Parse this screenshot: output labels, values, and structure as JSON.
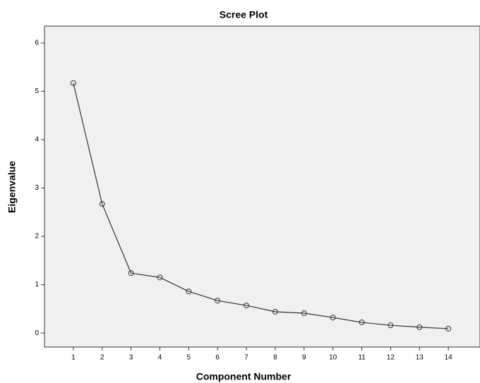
{
  "chart_data": {
    "type": "line",
    "title": "Scree Plot",
    "x_label": "Component Number",
    "y_label": "Eigenvalue",
    "x": [
      1,
      2,
      3,
      4,
      5,
      6,
      7,
      8,
      9,
      10,
      11,
      12,
      13,
      14
    ],
    "series": [
      {
        "color": "#333333",
        "values": [
          5.17,
          2.67,
          1.24,
          1.15,
          0.86,
          0.67,
          0.57,
          0.44,
          0.41,
          0.32,
          0.22,
          0.16,
          0.12,
          0.09
        ]
      }
    ],
    "xlim": [
      0,
      15
    ],
    "xticks": [
      1,
      2,
      3,
      4,
      5,
      6,
      7,
      8,
      9,
      10,
      11,
      12,
      13,
      14
    ],
    "ylim": [
      -0.29,
      6.35
    ],
    "yticks": [
      0,
      1,
      2,
      3,
      4,
      5,
      6
    ],
    "grid": false
  }
}
